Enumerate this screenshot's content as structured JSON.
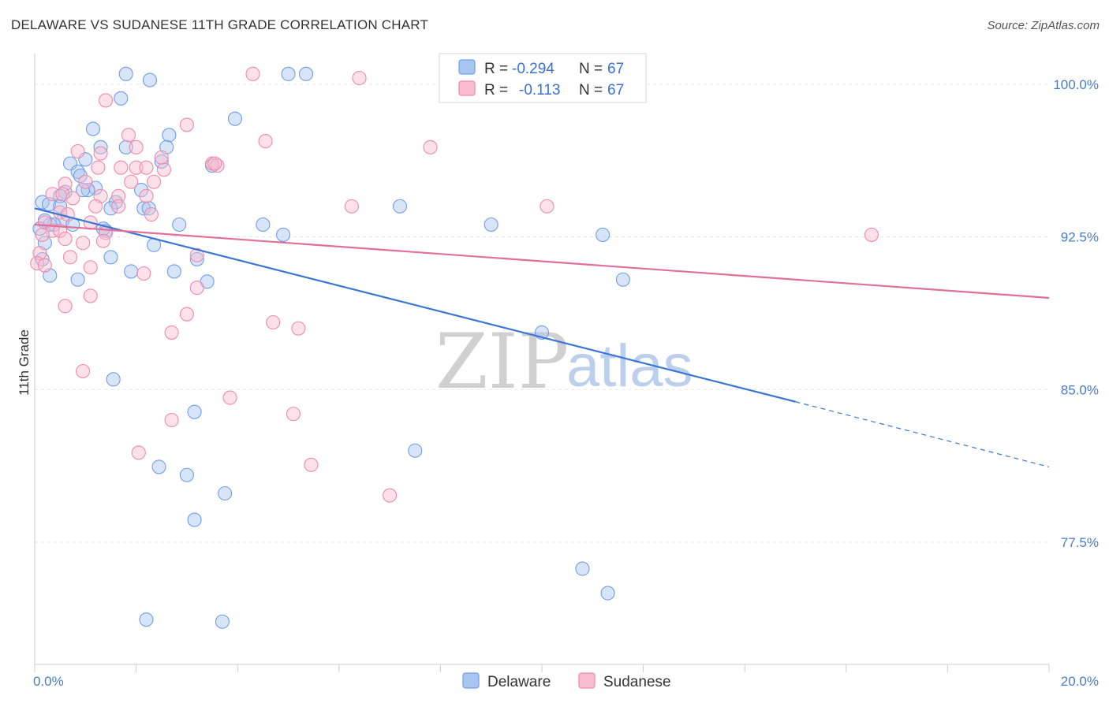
{
  "title": "DELAWARE VS SUDANESE 11TH GRADE CORRELATION CHART",
  "source": "Source: ZipAtlas.com",
  "watermark": {
    "zip": "ZIP",
    "atlas": "atlas"
  },
  "legend_box": [
    {
      "r_label": "R =",
      "r_value": "-0.294",
      "n_label": "N =",
      "n_value": "67"
    },
    {
      "r_label": "R =",
      "r_value": "-0.113",
      "n_label": "N =",
      "n_value": "67"
    }
  ],
  "chart_data": {
    "type": "scatter",
    "ylabel": "11th Grade",
    "xlim": [
      0,
      20
    ],
    "ylim": [
      71.5,
      101.5
    ],
    "x_ticks": [
      "0.0%",
      "20.0%"
    ],
    "y_ticks": [
      {
        "value": 100.0,
        "label": "100.0%"
      },
      {
        "value": 92.5,
        "label": "92.5%"
      },
      {
        "value": 85.0,
        "label": "85.0%"
      },
      {
        "value": 77.5,
        "label": "77.5%"
      }
    ],
    "grid": true,
    "legend_position": "bottom",
    "series": [
      {
        "name": "Delaware",
        "color": "#6f9ee8",
        "fill": "#a9c6f0",
        "line_color": "#3a76d6",
        "trend": {
          "x0": 0,
          "y0": 93.9,
          "x1": 15.0,
          "y1": 84.4,
          "dash_to_x": 20,
          "dash_to_y": 81.2
        },
        "points": [
          [
            1.8,
            100.5
          ],
          [
            2.27,
            100.2
          ],
          [
            5.0,
            100.5
          ],
          [
            5.35,
            100.5
          ],
          [
            1.7,
            99.3
          ],
          [
            3.95,
            98.3
          ],
          [
            1.15,
            97.8
          ],
          [
            2.65,
            97.5
          ],
          [
            2.6,
            96.9
          ],
          [
            1.3,
            96.9
          ],
          [
            1.8,
            96.9
          ],
          [
            2.5,
            96.2
          ],
          [
            0.7,
            96.1
          ],
          [
            1.0,
            96.3
          ],
          [
            0.85,
            95.7
          ],
          [
            0.9,
            95.5
          ],
          [
            3.5,
            96.0
          ],
          [
            1.2,
            94.9
          ],
          [
            1.05,
            94.8
          ],
          [
            2.1,
            94.8
          ],
          [
            0.95,
            94.8
          ],
          [
            0.6,
            94.7
          ],
          [
            0.5,
            94.5
          ],
          [
            0.15,
            94.2
          ],
          [
            0.28,
            94.1
          ],
          [
            0.5,
            94.0
          ],
          [
            1.6,
            94.2
          ],
          [
            1.5,
            93.9
          ],
          [
            2.15,
            93.9
          ],
          [
            2.25,
            93.9
          ],
          [
            7.2,
            94.0
          ],
          [
            0.55,
            93.3
          ],
          [
            0.3,
            93.1
          ],
          [
            0.38,
            93.1
          ],
          [
            2.85,
            93.1
          ],
          [
            9.0,
            93.1
          ],
          [
            4.5,
            93.1
          ],
          [
            0.75,
            93.1
          ],
          [
            0.2,
            93.3
          ],
          [
            1.4,
            92.8
          ],
          [
            4.9,
            92.6
          ],
          [
            11.2,
            92.6
          ],
          [
            2.35,
            92.1
          ],
          [
            1.5,
            91.5
          ],
          [
            3.2,
            91.4
          ],
          [
            0.3,
            90.6
          ],
          [
            0.85,
            90.4
          ],
          [
            1.9,
            90.8
          ],
          [
            2.75,
            90.8
          ],
          [
            3.4,
            90.3
          ],
          [
            11.6,
            90.4
          ],
          [
            10.0,
            87.8
          ],
          [
            1.55,
            85.5
          ],
          [
            3.15,
            83.9
          ],
          [
            7.5,
            82.0
          ],
          [
            2.45,
            81.2
          ],
          [
            3.0,
            80.8
          ],
          [
            3.75,
            79.9
          ],
          [
            3.15,
            78.6
          ],
          [
            10.8,
            76.2
          ],
          [
            11.3,
            75.0
          ],
          [
            2.2,
            73.7
          ],
          [
            3.7,
            73.6
          ],
          [
            0.1,
            92.9
          ],
          [
            0.2,
            92.2
          ],
          [
            0.15,
            91.4
          ],
          [
            1.35,
            92.9
          ]
        ]
      },
      {
        "name": "Sudanese",
        "color": "#f08aaa",
        "fill": "#f8bdd0",
        "line_color": "#e0709a",
        "trend": {
          "x0": 0,
          "y0": 93.1,
          "x1": 20,
          "y1": 89.5
        },
        "points": [
          [
            4.3,
            100.5
          ],
          [
            6.4,
            100.3
          ],
          [
            1.4,
            99.2
          ],
          [
            3.0,
            98.0
          ],
          [
            1.85,
            97.5
          ],
          [
            4.55,
            97.2
          ],
          [
            7.8,
            96.9
          ],
          [
            0.85,
            96.7
          ],
          [
            2.0,
            96.9
          ],
          [
            1.3,
            96.6
          ],
          [
            3.5,
            96.1
          ],
          [
            3.6,
            96.0
          ],
          [
            1.25,
            95.9
          ],
          [
            1.7,
            95.9
          ],
          [
            2.0,
            95.9
          ],
          [
            2.2,
            95.9
          ],
          [
            2.55,
            95.8
          ],
          [
            2.5,
            96.4
          ],
          [
            0.6,
            95.1
          ],
          [
            1.0,
            95.2
          ],
          [
            1.9,
            95.2
          ],
          [
            2.35,
            95.2
          ],
          [
            0.35,
            94.6
          ],
          [
            0.55,
            94.6
          ],
          [
            0.75,
            94.4
          ],
          [
            1.3,
            94.5
          ],
          [
            1.65,
            94.5
          ],
          [
            2.2,
            94.5
          ],
          [
            6.25,
            94.0
          ],
          [
            10.1,
            94.0
          ],
          [
            1.2,
            94.0
          ],
          [
            1.65,
            94.0
          ],
          [
            0.5,
            93.7
          ],
          [
            0.65,
            93.6
          ],
          [
            2.3,
            93.6
          ],
          [
            0.2,
            93.2
          ],
          [
            1.1,
            93.2
          ],
          [
            0.35,
            92.8
          ],
          [
            0.5,
            92.8
          ],
          [
            1.4,
            92.7
          ],
          [
            0.15,
            92.6
          ],
          [
            16.5,
            92.6
          ],
          [
            0.6,
            92.4
          ],
          [
            1.35,
            92.3
          ],
          [
            0.95,
            92.2
          ],
          [
            3.2,
            91.6
          ],
          [
            0.7,
            91.5
          ],
          [
            0.1,
            91.7
          ],
          [
            0.05,
            91.2
          ],
          [
            1.1,
            91.0
          ],
          [
            2.15,
            90.7
          ],
          [
            3.2,
            90.0
          ],
          [
            1.1,
            89.6
          ],
          [
            0.6,
            89.1
          ],
          [
            3.0,
            88.7
          ],
          [
            4.7,
            88.3
          ],
          [
            5.2,
            88.0
          ],
          [
            2.7,
            87.8
          ],
          [
            0.95,
            85.9
          ],
          [
            3.85,
            84.6
          ],
          [
            5.1,
            83.8
          ],
          [
            2.7,
            83.5
          ],
          [
            2.05,
            81.9
          ],
          [
            5.45,
            81.3
          ],
          [
            7.0,
            79.8
          ],
          [
            3.55,
            96.1
          ],
          [
            0.2,
            91.1
          ]
        ]
      }
    ]
  }
}
